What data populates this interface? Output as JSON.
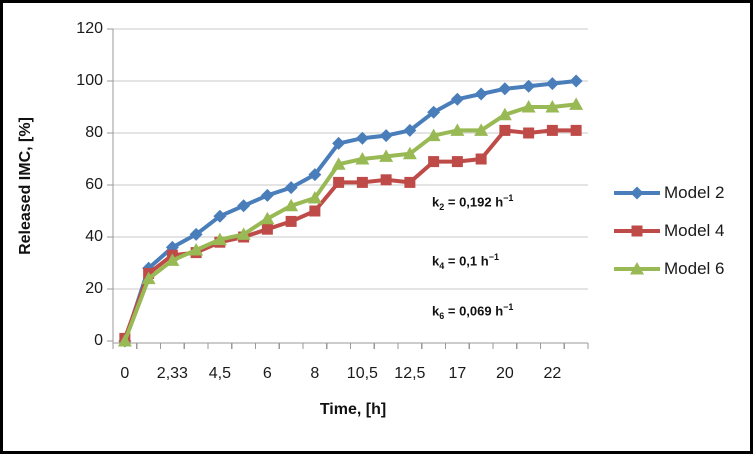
{
  "chart_data": {
    "type": "line",
    "title": "",
    "xlabel": "Time, [h]",
    "ylabel": "Released IMC, [%]",
    "ylim": [
      0,
      120
    ],
    "yticks": [
      0,
      20,
      40,
      60,
      80,
      100,
      120
    ],
    "grid": "horizontal",
    "legend_position": "right",
    "categories": [
      "0",
      "",
      "2,33",
      "",
      "4,5",
      "",
      "6",
      "",
      "8",
      "",
      "10,5",
      "",
      "12,5",
      "",
      "17",
      "",
      "20",
      "",
      "22",
      ""
    ],
    "series": [
      {
        "name": "Model 2",
        "marker": "diamond",
        "color": "#4a7ebb",
        "values": [
          0,
          28,
          36,
          41,
          48,
          52,
          56,
          59,
          64,
          76,
          78,
          79,
          81,
          88,
          93,
          95,
          97,
          98,
          99,
          100
        ]
      },
      {
        "name": "Model 4",
        "marker": "square",
        "color": "#be4b48",
        "values": [
          1,
          26,
          33,
          34,
          38,
          40,
          43,
          46,
          50,
          61,
          61,
          62,
          61,
          69,
          69,
          70,
          81,
          80,
          81,
          81
        ]
      },
      {
        "name": "Model 6",
        "marker": "triangle",
        "color": "#98b954",
        "values": [
          0,
          24,
          31,
          35,
          39,
          41,
          47,
          52,
          55,
          68,
          70,
          71,
          72,
          79,
          81,
          81,
          87,
          90,
          90,
          91
        ]
      }
    ],
    "annotations": [
      {
        "prefix": "k",
        "sub": "2",
        "rest": " = 0,192 h",
        "sup": "−1"
      },
      {
        "prefix": "k",
        "sub": "4",
        "rest": " = 0,1 h",
        "sup": "−1"
      },
      {
        "prefix": "k",
        "sub": "6",
        "rest": " = 0,069 h",
        "sup": "−1"
      }
    ],
    "axis_color": "#9a9a9a",
    "gridline_color": "#c9c9c9"
  }
}
